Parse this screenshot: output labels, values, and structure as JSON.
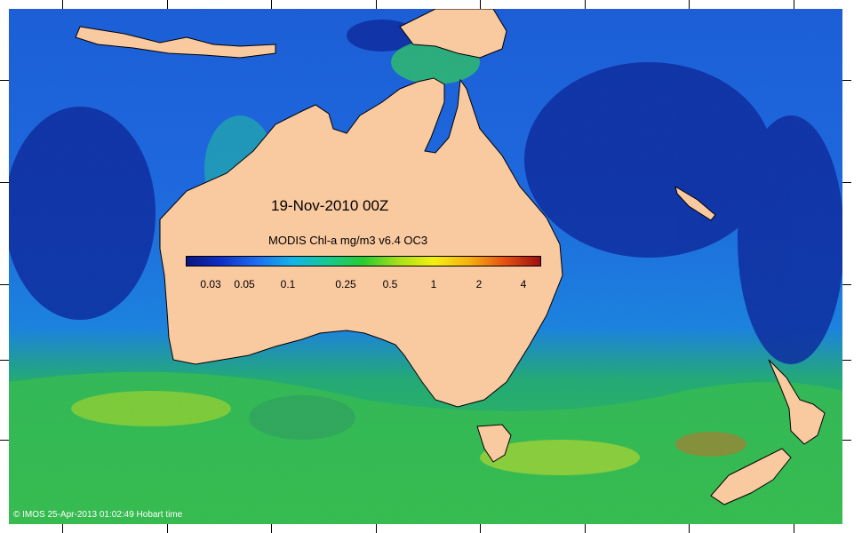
{
  "map": {
    "date_label": "19-Nov-2010 00Z",
    "colorbar": {
      "title": "MODIS Chl-a mg/m3 v6.4 OC3",
      "ticks": [
        "0.03",
        "0.05",
        "0.1",
        "0.25",
        "0.5",
        "1",
        "2",
        "4"
      ],
      "colormap": [
        "#0a1580",
        "#1030c8",
        "#1e6ef0",
        "#12b5e8",
        "#18c890",
        "#28cc30",
        "#a8e018",
        "#f5f010",
        "#f5b010",
        "#e65010",
        "#9c1010"
      ]
    },
    "credit": "© IMOS 25-Apr-2013 01:02:49 Hobart time",
    "colors": {
      "land": "#f9c9a0",
      "ocean_low": "#1a3ab8",
      "ocean_mid": "#1e7fe0",
      "ocean_high": "#2ecc40"
    }
  }
}
